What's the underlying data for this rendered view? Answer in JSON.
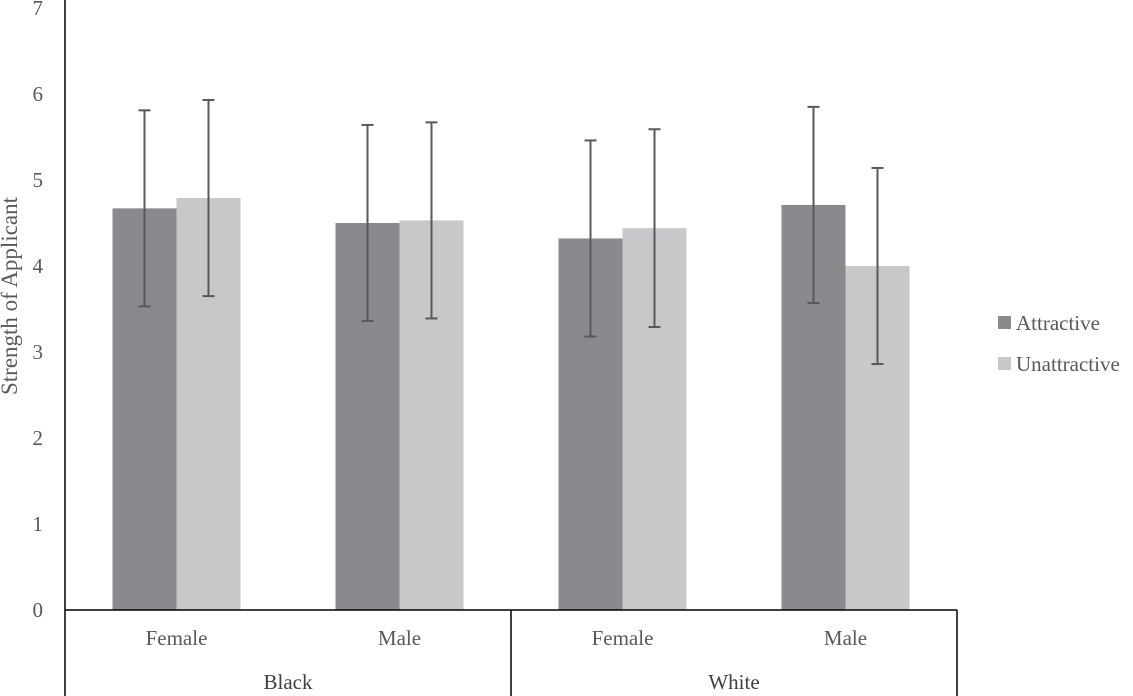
{
  "chart_data": {
    "type": "bar",
    "ylabel": "Strength of Applicant",
    "ylim": [
      0,
      7
    ],
    "yticks": [
      "0",
      "1",
      "2",
      "3",
      "4",
      "5",
      "6",
      "7"
    ],
    "groups": [
      {
        "label": "Black",
        "categories": [
          "Female",
          "Male"
        ]
      },
      {
        "label": "White",
        "categories": [
          "Female",
          "Male"
        ]
      }
    ],
    "categories": [
      "Female",
      "Male",
      "Female",
      "Male"
    ],
    "series": [
      {
        "name": "Attractive",
        "color": "#898a8d",
        "values": [
          4.67,
          4.5,
          4.32,
          4.71
        ],
        "error": [
          1.14,
          1.14,
          1.14,
          1.14
        ]
      },
      {
        "name": "Unattractive",
        "color": "#c7c8ca",
        "values": [
          4.79,
          4.53,
          4.44,
          4.0
        ],
        "error": [
          1.14,
          1.14,
          1.15,
          1.14
        ]
      }
    ],
    "legend_position": "right",
    "grid": false
  }
}
